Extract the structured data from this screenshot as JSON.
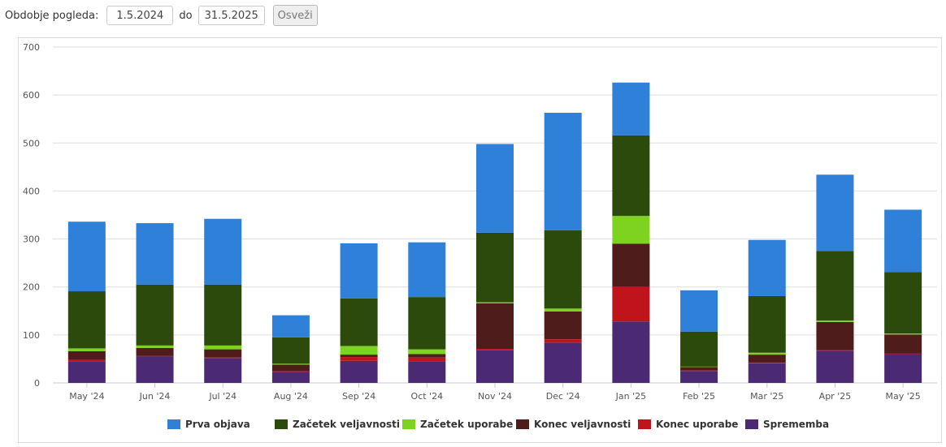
{
  "controls": {
    "period_label": "Obdobje pogleda:",
    "date_from": "1.5.2024",
    "between": "do",
    "date_to": "31.5.2025",
    "refresh_label": "Osveži"
  },
  "chart_data": {
    "type": "bar",
    "stacked": true,
    "categories": [
      "May '24",
      "Jun '24",
      "Jul '24",
      "Aug '24",
      "Sep '24",
      "Oct '24",
      "Nov '24",
      "Dec '24",
      "Jan '25",
      "Feb '25",
      "Mar '25",
      "Apr '25",
      "May '25"
    ],
    "ylim": [
      0,
      700
    ],
    "yticks": [
      0,
      100,
      200,
      300,
      400,
      500,
      600,
      700
    ],
    "grid": true,
    "legend_position": "bottom",
    "series": [
      {
        "name": "Sprememba",
        "color": "#4b2a73",
        "values": [
          45,
          55,
          52,
          23,
          46,
          45,
          68,
          84,
          128,
          25,
          41,
          67,
          60
        ]
      },
      {
        "name": "Konec uporabe",
        "color": "#c0141c",
        "values": [
          3,
          1,
          1,
          1,
          8,
          8,
          3,
          7,
          72,
          1,
          1,
          1,
          1
        ]
      },
      {
        "name": "Konec veljavnosti",
        "color": "#4f1c1c",
        "values": [
          18,
          17,
          17,
          14,
          5,
          7,
          95,
          58,
          90,
          7,
          17,
          59,
          40
        ]
      },
      {
        "name": "Začetek uporabe",
        "color": "#7ed321",
        "values": [
          6,
          5,
          8,
          2,
          18,
          10,
          2,
          6,
          58,
          1,
          4,
          3,
          2
        ]
      },
      {
        "name": "Začetek veljavnosti",
        "color": "#2b4a0b",
        "values": [
          119,
          127,
          127,
          55,
          99,
          109,
          145,
          163,
          168,
          73,
          118,
          145,
          128
        ]
      },
      {
        "name": "Prva objava",
        "color": "#2f80d9",
        "values": [
          145,
          128,
          137,
          46,
          115,
          114,
          185,
          245,
          110,
          86,
          117,
          159,
          130
        ]
      }
    ],
    "legend_order": [
      "Prva objava",
      "Začetek veljavnosti",
      "Začetek uporabe",
      "Konec veljavnosti",
      "Konec uporabe",
      "Sprememba"
    ]
  }
}
